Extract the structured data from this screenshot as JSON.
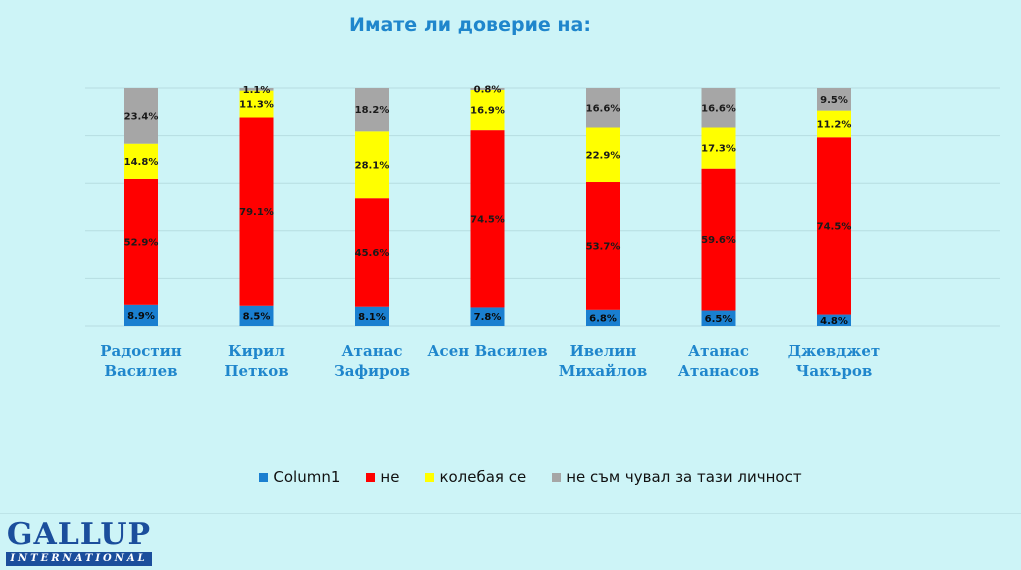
{
  "chart_data": {
    "type": "bar",
    "stacked": true,
    "title": "Имате  ли доверие на:",
    "categories": [
      [
        "Радостин",
        "Василев"
      ],
      [
        "Кирил",
        "Петков"
      ],
      [
        "Атанас",
        "Зафиров"
      ],
      [
        "Асен Василев"
      ],
      [
        "Ивелин",
        "Михайлов"
      ],
      [
        "Атанас",
        "Атанасов"
      ],
      [
        "Джевджет",
        "Чакъров"
      ]
    ],
    "series": [
      {
        "name": "Column1",
        "color": "#1a7fd0",
        "values": [
          8.9,
          8.5,
          8.1,
          7.8,
          6.8,
          6.5,
          4.8
        ]
      },
      {
        "name": "не",
        "color": "#ff0000",
        "values": [
          52.9,
          79.1,
          45.6,
          74.5,
          53.7,
          59.6,
          74.5
        ]
      },
      {
        "name": "колебая се",
        "color": "#ffff00",
        "values": [
          14.8,
          11.3,
          28.1,
          16.9,
          22.9,
          17.3,
          11.2
        ]
      },
      {
        "name": "не съм чувал за тази личност",
        "color": "#a6a6a6",
        "values": [
          23.4,
          1.1,
          18.2,
          0.8,
          16.6,
          16.6,
          9.5
        ]
      }
    ],
    "ylim": [
      0,
      100
    ],
    "grid": true,
    "legend_position": "bottom",
    "value_suffix": "%"
  },
  "logo": {
    "word": "GALLUP",
    "sub": "INTERNATIONAL"
  }
}
